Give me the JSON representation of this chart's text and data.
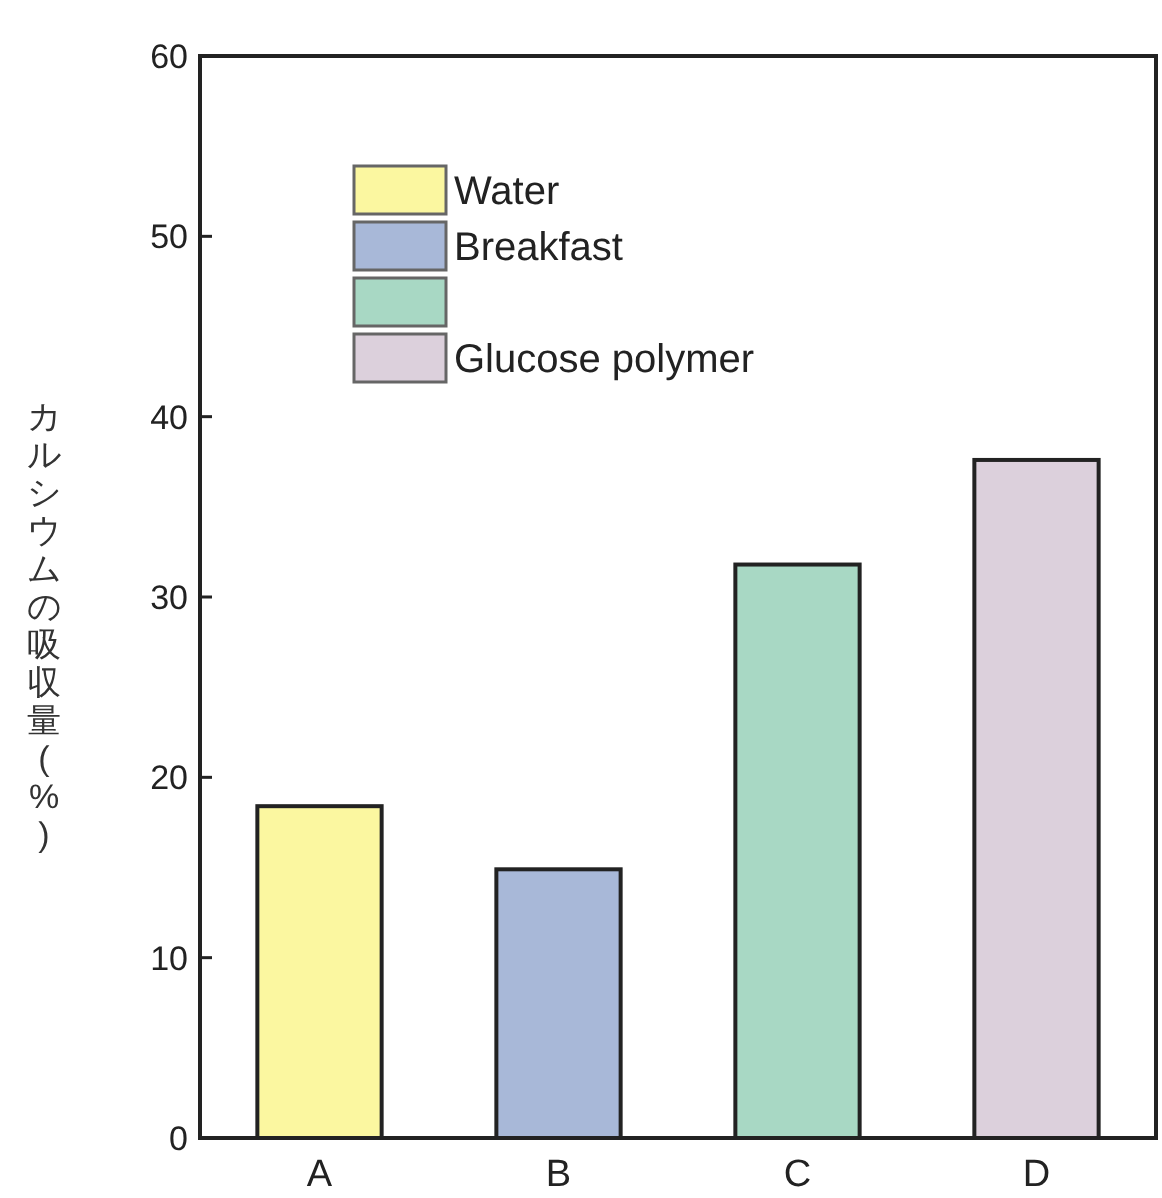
{
  "chart_data": {
    "type": "bar",
    "ylabel": "カルシウムの吸収量(%)",
    "categories": [
      "A",
      "B",
      "C",
      "D"
    ],
    "series": [
      {
        "name": "Water",
        "color": "#fbf7a0",
        "values": [
          18.4,
          null,
          null,
          null
        ]
      },
      {
        "name": "Breakfast",
        "color": "#a8b8d8",
        "values": [
          null,
          14.9,
          null,
          null
        ]
      },
      {
        "color": "#a8d8c4",
        "values": [
          null,
          null,
          31.8,
          null
        ]
      },
      {
        "name": "Glucose polymer",
        "color": "#dcd0dc",
        "values": [
          null,
          null,
          null,
          37.6
        ]
      }
    ],
    "ylim": [
      0,
      60
    ],
    "yticks": [
      0,
      10,
      20,
      30,
      40,
      50,
      60
    ],
    "legend": "top left"
  }
}
